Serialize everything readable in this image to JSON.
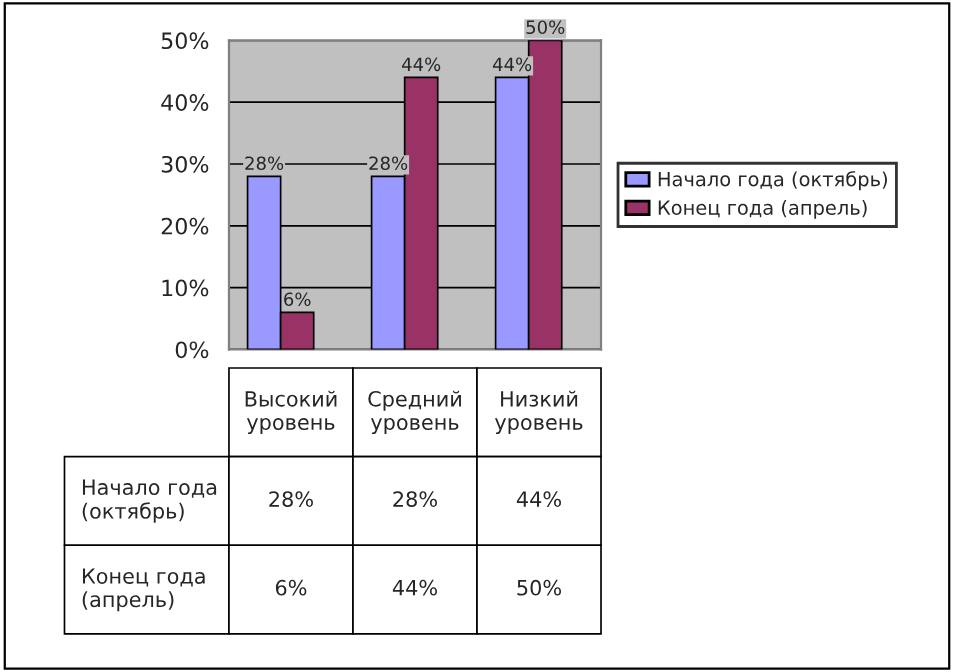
{
  "chart_data": {
    "type": "bar",
    "categories": [
      "Высокий уровень",
      "Средний уровень",
      "Низкий уровень"
    ],
    "series": [
      {
        "name": "Начало года (октябрь)",
        "color": "#9999ff",
        "values": [
          28,
          28,
          44
        ],
        "value_labels": [
          "28%",
          "28%",
          "44%"
        ]
      },
      {
        "name": "Конец года (апрель)",
        "color": "#993366",
        "values": [
          6,
          44,
          50
        ],
        "value_labels": [
          "6%",
          "44%",
          "50%"
        ]
      }
    ],
    "ylim": [
      0,
      50
    ],
    "yticks": [
      {
        "value": 0,
        "label": "0%"
      },
      {
        "value": 10,
        "label": "10%"
      },
      {
        "value": 20,
        "label": "20%"
      },
      {
        "value": 30,
        "label": "30%"
      },
      {
        "value": 40,
        "label": "40%"
      },
      {
        "value": 50,
        "label": "50%"
      }
    ],
    "grid": "y",
    "legend": "right"
  }
}
